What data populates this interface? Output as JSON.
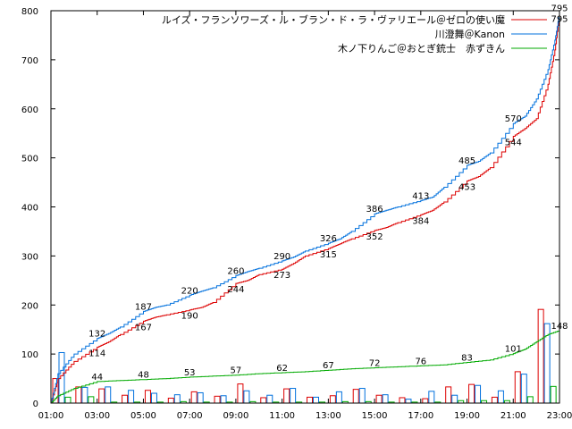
{
  "chart_data": {
    "type": "line",
    "x_unit": "hour",
    "xlim": [
      1,
      23
    ],
    "ylim": [
      0,
      800
    ],
    "x_ticks": [
      "01:00",
      "03:00",
      "05:00",
      "07:00",
      "09:00",
      "11:00",
      "13:00",
      "15:00",
      "17:00",
      "19:00",
      "21:00",
      "23:00"
    ],
    "y_ticks": [
      "0",
      "100",
      "200",
      "300",
      "400",
      "500",
      "600",
      "700",
      "800"
    ],
    "grid": false,
    "legend_position": "top-right",
    "series": [
      {
        "name": "ルイズ・フランソワーズ・ル・ブラン・ド・ラ・ヴァリエール＠ゼロの使い魔",
        "color": "#dd0000",
        "x": [
          1.0,
          1.3,
          2.0,
          3.0,
          3.5,
          4.0,
          5.0,
          5.5,
          6.0,
          7.0,
          7.5,
          8.0,
          9.0,
          9.5,
          10.0,
          11.0,
          11.5,
          12.0,
          13.0,
          13.5,
          14.0,
          15.0,
          15.5,
          16.0,
          17.0,
          17.5,
          18.0,
          19.0,
          19.5,
          20.0,
          21.0,
          21.5,
          22.0,
          22.5,
          22.8,
          23.0
        ],
        "y": [
          0,
          50,
          85,
          114,
          125,
          140,
          167,
          175,
          180,
          190,
          195,
          205,
          244,
          250,
          262,
          273,
          285,
          300,
          315,
          325,
          335,
          352,
          358,
          368,
          384,
          393,
          410,
          453,
          462,
          480,
          544,
          560,
          580,
          650,
          720,
          795
        ],
        "labels": [
          {
            "x": 3,
            "y": 114,
            "text": "114"
          },
          {
            "x": 5,
            "y": 167,
            "text": "167"
          },
          {
            "x": 7,
            "y": 190,
            "text": "190"
          },
          {
            "x": 9,
            "y": 244,
            "text": "244"
          },
          {
            "x": 11,
            "y": 273,
            "text": "273"
          },
          {
            "x": 13,
            "y": 315,
            "text": "315"
          },
          {
            "x": 15,
            "y": 352,
            "text": "352"
          },
          {
            "x": 17,
            "y": 384,
            "text": "384"
          },
          {
            "x": 19,
            "y": 453,
            "text": "453"
          },
          {
            "x": 21,
            "y": 544,
            "text": "544"
          },
          {
            "x": 23,
            "y": 795,
            "text": "795"
          }
        ]
      },
      {
        "name": "川澄舞＠Kanon",
        "color": "#0070dd",
        "x": [
          1.0,
          1.3,
          2.0,
          3.0,
          3.5,
          4.0,
          5.0,
          5.5,
          6.0,
          7.0,
          7.5,
          8.0,
          9.0,
          9.5,
          10.0,
          11.0,
          11.5,
          12.0,
          13.0,
          13.5,
          14.0,
          15.0,
          15.5,
          16.0,
          17.0,
          17.5,
          18.0,
          19.0,
          19.5,
          20.0,
          21.0,
          21.5,
          22.0,
          22.5,
          22.8,
          23.0
        ],
        "y": [
          0,
          60,
          100,
          132,
          142,
          155,
          187,
          195,
          200,
          220,
          228,
          235,
          260,
          268,
          275,
          290,
          298,
          310,
          326,
          335,
          350,
          386,
          393,
          400,
          413,
          420,
          440,
          485,
          493,
          510,
          570,
          585,
          620,
          680,
          740,
          795
        ],
        "labels": [
          {
            "x": 3,
            "y": 132,
            "text": "132"
          },
          {
            "x": 5,
            "y": 187,
            "text": "187"
          },
          {
            "x": 7,
            "y": 220,
            "text": "220"
          },
          {
            "x": 9,
            "y": 260,
            "text": "260"
          },
          {
            "x": 11,
            "y": 290,
            "text": "290"
          },
          {
            "x": 13,
            "y": 326,
            "text": "326"
          },
          {
            "x": 15,
            "y": 386,
            "text": "386"
          },
          {
            "x": 17,
            "y": 413,
            "text": "413"
          },
          {
            "x": 19,
            "y": 485,
            "text": "485"
          },
          {
            "x": 21,
            "y": 570,
            "text": "570"
          },
          {
            "x": 23,
            "y": 795,
            "text": "795"
          }
        ]
      },
      {
        "name": "木ノ下りんご＠おとぎ銃士　赤ずきん",
        "color": "#00aa00",
        "x": [
          1.0,
          1.3,
          2.0,
          3.0,
          4.0,
          5.0,
          6.0,
          7.0,
          8.0,
          9.0,
          10.0,
          11.0,
          12.0,
          13.0,
          14.0,
          15.0,
          16.0,
          17.0,
          18.0,
          19.0,
          20.0,
          21.0,
          21.5,
          22.0,
          22.5,
          23.0
        ],
        "y": [
          0,
          15,
          30,
          44,
          46,
          48,
          50,
          53,
          55,
          57,
          60,
          62,
          64,
          67,
          70,
          72,
          74,
          76,
          78,
          83,
          88,
          101,
          110,
          125,
          140,
          148
        ],
        "labels": [
          {
            "x": 3,
            "y": 44,
            "text": "44"
          },
          {
            "x": 5,
            "y": 48,
            "text": "48"
          },
          {
            "x": 7,
            "y": 53,
            "text": "53"
          },
          {
            "x": 9,
            "y": 57,
            "text": "57"
          },
          {
            "x": 11,
            "y": 62,
            "text": "62"
          },
          {
            "x": 13,
            "y": 67,
            "text": "67"
          },
          {
            "x": 15,
            "y": 72,
            "text": "72"
          },
          {
            "x": 17,
            "y": 76,
            "text": "76"
          },
          {
            "x": 19,
            "y": 83,
            "text": "83"
          },
          {
            "x": 21,
            "y": 101,
            "text": "101"
          },
          {
            "x": 23,
            "y": 148,
            "text": "148"
          }
        ]
      }
    ],
    "bars": {
      "description_of_values": "hourly increments drawn as hollow bars near the baseline",
      "hours": [
        1,
        2,
        3,
        4,
        5,
        6,
        7,
        8,
        9,
        10,
        11,
        12,
        13,
        14,
        15,
        16,
        17,
        18,
        19,
        20,
        21,
        22
      ],
      "red": [
        50,
        33,
        29,
        16,
        26,
        10,
        23,
        14,
        39,
        11,
        29,
        12,
        15,
        28,
        16,
        11,
        9,
        33,
        38,
        12,
        64,
        191
      ],
      "blue": [
        103,
        32,
        33,
        26,
        20,
        17,
        21,
        15,
        25,
        16,
        30,
        12,
        23,
        30,
        17,
        8,
        24,
        16,
        36,
        25,
        59,
        162
      ],
      "green": [
        12,
        13,
        2,
        2,
        2,
        3,
        2,
        2,
        3,
        2,
        2,
        2,
        3,
        3,
        2,
        2,
        2,
        5,
        5,
        5,
        13,
        34
      ]
    }
  }
}
